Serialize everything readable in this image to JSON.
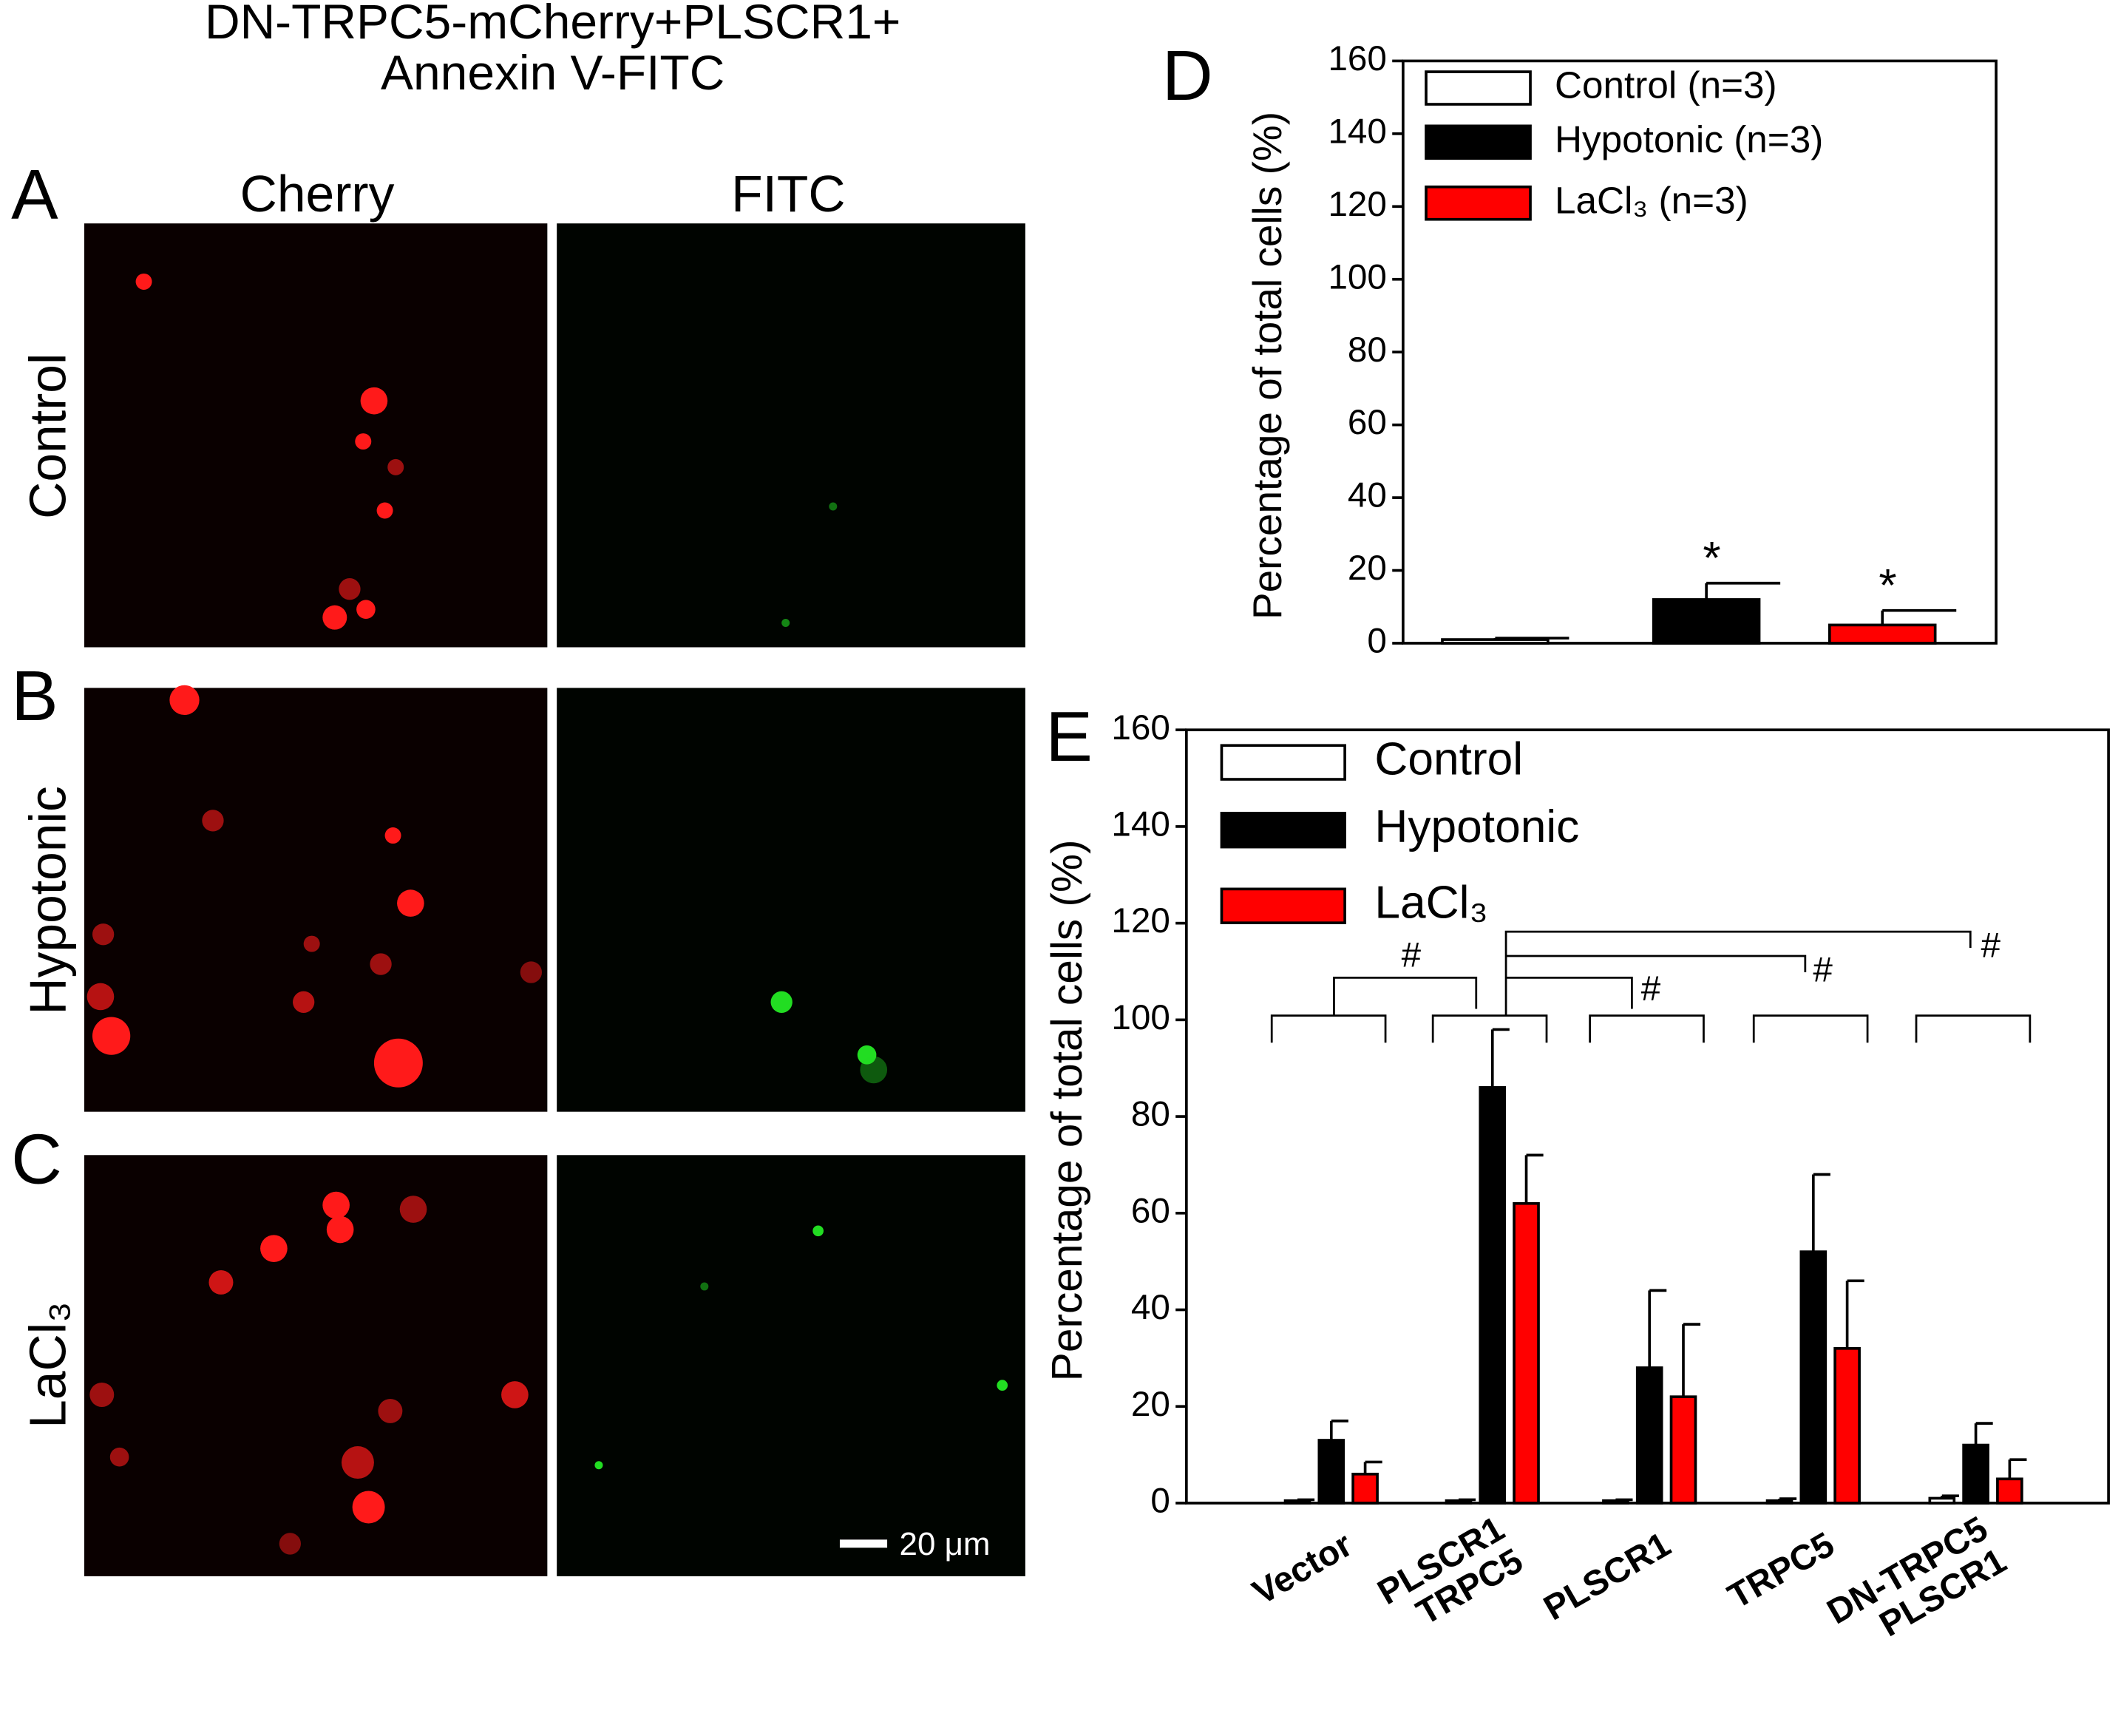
{
  "figure": {
    "title": "DN-TRPC5-mCherry+PLSCR1+\nAnnexin V-FITC",
    "panels": [
      "A",
      "B",
      "C",
      "D",
      "E"
    ],
    "columns": [
      "Cherry",
      "FITC"
    ],
    "rows": [
      "Control",
      "Hypotonic",
      "LaCl₃"
    ],
    "scale_bar": "20 μm"
  },
  "chart_data": [
    {
      "type": "bar",
      "ylabel": "Percentage of total cells (%)",
      "categories": [
        null
      ],
      "series": [
        {
          "name": "Control (n=3)",
          "color": "#ffffff",
          "values": [
            1
          ],
          "errors": [
            0.4
          ]
        },
        {
          "name": "Hypotonic (n=3)",
          "color": "#000000",
          "values": [
            12
          ],
          "errors": [
            4.5
          ]
        },
        {
          "name": "LaCl₃ (n=3)",
          "color": "#ff0000",
          "values": [
            5
          ],
          "errors": [
            4
          ]
        }
      ],
      "ylim": [
        0,
        160
      ],
      "yticks": [
        0,
        20,
        40,
        60,
        80,
        100,
        120,
        140,
        160
      ],
      "annotations": [
        "*",
        "*"
      ]
    },
    {
      "type": "bar",
      "ylabel": "Percentage of total cells (%)",
      "categories": [
        "Vector",
        "PLSCR1\nTRPC5",
        "PLSCR1",
        "TRPC5",
        "DN-TRPC5\nPLSCR1"
      ],
      "series": [
        {
          "name": "Control",
          "color": "#ffffff",
          "values": [
            0.5,
            0.5,
            0.5,
            0.5,
            1
          ],
          "errors": [
            0.2,
            0.2,
            0.2,
            0.4,
            0.5
          ]
        },
        {
          "name": "Hypotonic",
          "color": "#000000",
          "values": [
            13,
            86,
            28,
            52,
            12
          ],
          "errors": [
            4,
            12,
            16,
            16,
            4.5
          ]
        },
        {
          "name": "LaCl₃",
          "color": "#ff0000",
          "values": [
            6,
            62,
            22,
            32,
            5
          ],
          "errors": [
            2.5,
            10,
            15,
            14,
            4
          ]
        }
      ],
      "ylim": [
        0,
        160
      ],
      "yticks": [
        0,
        20,
        40,
        60,
        80,
        100,
        120,
        140,
        160
      ],
      "annotations": [
        "#",
        "#",
        "#",
        "#"
      ]
    }
  ]
}
